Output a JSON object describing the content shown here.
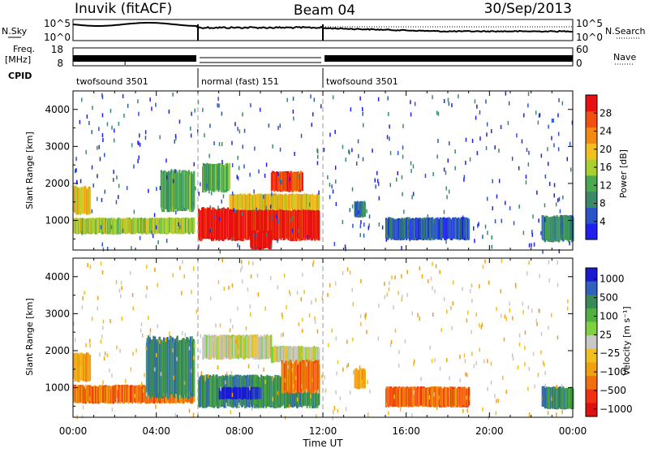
{
  "header": {
    "radar": "Inuvik (fitACF)",
    "beam": "Beam 04",
    "date": "30/Sep/2013"
  },
  "top_panels": {
    "nsky_label": "N.Sky",
    "nsky_ticks": [
      "10^5",
      "10^0"
    ],
    "nsearch_label": "N.Search",
    "nsearch_ticks": [
      "10^5",
      "10^0"
    ],
    "freq_label_1": "Freq.",
    "freq_label_2": "[MHz]",
    "freq_ticks": [
      "18",
      "8"
    ],
    "nave_label": "Nave",
    "nave_ticks": [
      "60",
      "0"
    ],
    "cpid_label": "CPID",
    "cpid_segments": [
      {
        "label": "twofsound 3501",
        "start": 0,
        "end": 6
      },
      {
        "label": "normal (fast) 151",
        "start": 6,
        "end": 12
      },
      {
        "label": "twofsound 3501",
        "start": 12,
        "end": 24
      }
    ]
  },
  "colors": {
    "power": [
      "#1f1ff0",
      "#2a55c8",
      "#3a8a6a",
      "#4aa850",
      "#a8d030",
      "#f0c020",
      "#f08a10",
      "#f05010",
      "#e81010"
    ],
    "velocity": [
      "#1a1ad0",
      "#3060c0",
      "#3a8a58",
      "#50b040",
      "#7fd040",
      "#c8c8c8",
      "#f0c020",
      "#f0a010",
      "#f07010",
      "#f03010",
      "#e01010"
    ]
  },
  "chart_data": [
    {
      "type": "heatmap",
      "quantity": "power",
      "xlabel": "",
      "ylabel": "Slant Range [km]",
      "xlim": [
        0,
        24
      ],
      "ylim": [
        200,
        4500
      ],
      "y_ticks": [
        1000,
        2000,
        3000,
        4000
      ],
      "x_tick_values": [
        0,
        4,
        8,
        12,
        16,
        20,
        24
      ],
      "colorbar_label": "Power [dB]",
      "colorbar_range": [
        0,
        32
      ],
      "colorbar_ticks": [
        "4",
        "8",
        "12",
        "16",
        "20",
        "24",
        "28"
      ],
      "regions": [
        {
          "x0": 0.0,
          "x1": 5.8,
          "y0": 650,
          "y1": 1050,
          "level": 4
        },
        {
          "x0": 0.0,
          "x1": 0.8,
          "y0": 1200,
          "y1": 1900,
          "level": 5
        },
        {
          "x0": 4.2,
          "x1": 5.8,
          "y0": 1300,
          "y1": 2300,
          "level": 3
        },
        {
          "x0": 6.0,
          "x1": 11.8,
          "y0": 500,
          "y1": 1300,
          "level": 8
        },
        {
          "x0": 6.2,
          "x1": 7.5,
          "y0": 1800,
          "y1": 2500,
          "level": 3
        },
        {
          "x0": 7.5,
          "x1": 11.8,
          "y0": 1300,
          "y1": 1700,
          "level": 5
        },
        {
          "x0": 9.5,
          "x1": 11.0,
          "y0": 1800,
          "y1": 2300,
          "level": 7
        },
        {
          "x0": 8.5,
          "x1": 9.5,
          "y0": 250,
          "y1": 700,
          "level": 8
        },
        {
          "x0": 13.5,
          "x1": 14.0,
          "y0": 1100,
          "y1": 1500,
          "level": 2
        },
        {
          "x0": 15.0,
          "x1": 19.0,
          "y0": 500,
          "y1": 1050,
          "level": 1
        },
        {
          "x0": 22.5,
          "x1": 24.0,
          "y0": 450,
          "y1": 1100,
          "level": 2
        }
      ]
    },
    {
      "type": "heatmap",
      "quantity": "velocity",
      "xlabel": "Time UT",
      "ylabel": "Slant Range [km]",
      "xlim": [
        0,
        24
      ],
      "ylim": [
        200,
        4500
      ],
      "y_ticks": [
        1000,
        2000,
        3000,
        4000
      ],
      "x_tick_values": [
        0,
        4,
        8,
        12,
        16,
        20,
        24
      ],
      "x_tick_labels": [
        "00:00",
        "04:00",
        "08:00",
        "12:00",
        "16:00",
        "20:00",
        "00:00"
      ],
      "colorbar_label": "Velocity [m s⁻¹]",
      "colorbar_range": [
        -1250,
        1250
      ],
      "colorbar_ticks": [
        "1000",
        "500",
        "100",
        "25",
        "−25",
        "−100",
        "−500",
        "−1000"
      ],
      "regions": [
        {
          "x0": 0.0,
          "x1": 5.8,
          "y0": 600,
          "y1": 1050,
          "level": 8
        },
        {
          "x0": 0.0,
          "x1": 0.8,
          "y0": 1200,
          "y1": 1900,
          "level": 7
        },
        {
          "x0": 3.5,
          "x1": 5.8,
          "y0": 800,
          "y1": 2300,
          "level": 2
        },
        {
          "x0": 6.0,
          "x1": 11.8,
          "y0": 500,
          "y1": 1300,
          "level": 2
        },
        {
          "x0": 7.0,
          "x1": 9.0,
          "y0": 700,
          "y1": 1000,
          "level": 0
        },
        {
          "x0": 6.2,
          "x1": 9.5,
          "y0": 1800,
          "y1": 2400,
          "level": 5
        },
        {
          "x0": 9.5,
          "x1": 11.8,
          "y0": 1700,
          "y1": 2100,
          "level": 5
        },
        {
          "x0": 10.0,
          "x1": 11.8,
          "y0": 900,
          "y1": 1700,
          "level": 8
        },
        {
          "x0": 13.5,
          "x1": 14.0,
          "y0": 1000,
          "y1": 1500,
          "level": 7
        },
        {
          "x0": 15.0,
          "x1": 19.0,
          "y0": 500,
          "y1": 1000,
          "level": 8
        },
        {
          "x0": 22.5,
          "x1": 24.0,
          "y0": 450,
          "y1": 1000,
          "level": 2
        }
      ]
    }
  ]
}
